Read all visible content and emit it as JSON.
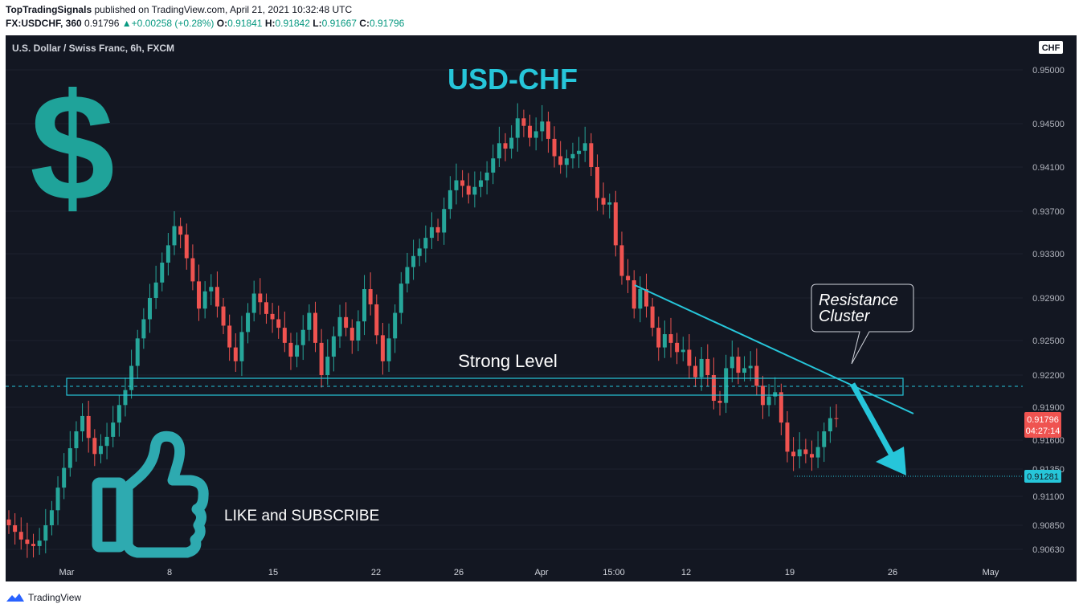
{
  "header": {
    "publisher": "TopTradingSignals",
    "published_text": "published on TradingView.com, April 21, 2021 10:32:48 UTC",
    "symbol_line": "FX:USDCHF, 360",
    "last": "0.91796",
    "change": "+0.00258 (+0.28%)",
    "o_label": "O:",
    "o": "0.91841",
    "h_label": "H:",
    "h": "0.91842",
    "l_label": "L:",
    "l": "0.91667",
    "c_label": "C:",
    "c": "0.91796"
  },
  "legend": "U.S. Dollar / Swiss Franc, 6h, FXCM",
  "currency_badge": "CHF",
  "footer": {
    "brand": "TradingView"
  },
  "colors": {
    "background": "#131722",
    "up": "#26a69a",
    "down": "#ef5350",
    "accent": "#26c6da",
    "text": "#d1d4dc",
    "dollar": "#1fa39a",
    "thumb": "#2eaab0"
  },
  "chart_data": {
    "type": "candlestick",
    "title": "USD-CHF",
    "y_ticks": [
      0.9063,
      0.9085,
      0.911,
      0.9135,
      0.916,
      0.919,
      0.922,
      0.925,
      0.929,
      0.933,
      0.937,
      0.941,
      0.945,
      0.95
    ],
    "y_tick_labels": [
      "0.90630",
      "0.90850",
      "0.91100",
      "0.91350",
      "0.91600",
      "0.91900",
      "0.92200",
      "0.92500",
      "0.92900",
      "0.93300",
      "0.93700",
      "0.94100",
      "0.94500",
      "0.95000"
    ],
    "x_tick_labels": [
      "Mar",
      "8",
      "15",
      "22",
      "26",
      "Apr",
      "15:00",
      "12",
      "19",
      "26",
      "May"
    ],
    "price_label_current": "0.91796",
    "countdown": "04:27:14",
    "price_label_target": "0.91281",
    "closes": [
      0.9085,
      0.9079,
      0.9072,
      0.9068,
      0.9066,
      0.9071,
      0.9085,
      0.9098,
      0.9118,
      0.9136,
      0.9153,
      0.9168,
      0.9182,
      0.9162,
      0.9148,
      0.9155,
      0.9163,
      0.9176,
      0.9192,
      0.9206,
      0.9228,
      0.9252,
      0.927,
      0.929,
      0.9304,
      0.9322,
      0.9338,
      0.9356,
      0.9348,
      0.9326,
      0.9305,
      0.928,
      0.9296,
      0.93,
      0.9282,
      0.9264,
      0.9244,
      0.9232,
      0.9258,
      0.9276,
      0.9294,
      0.9286,
      0.9275,
      0.927,
      0.9262,
      0.9248,
      0.9236,
      0.9246,
      0.926,
      0.9276,
      0.9248,
      0.922,
      0.9236,
      0.9254,
      0.9272,
      0.9262,
      0.925,
      0.9268,
      0.9298,
      0.9284,
      0.9255,
      0.9232,
      0.9252,
      0.9276,
      0.9303,
      0.9318,
      0.9328,
      0.9335,
      0.9345,
      0.9355,
      0.935,
      0.9372,
      0.9389,
      0.9398,
      0.9393,
      0.9385,
      0.9392,
      0.9398,
      0.9405,
      0.9418,
      0.9432,
      0.9427,
      0.9437,
      0.9455,
      0.9448,
      0.9437,
      0.9443,
      0.9452,
      0.9436,
      0.942,
      0.9412,
      0.9418,
      0.9422,
      0.9425,
      0.9432,
      0.941,
      0.9382,
      0.9376,
      0.9378,
      0.9338,
      0.931,
      0.9306,
      0.928,
      0.9298,
      0.9282,
      0.9262,
      0.9244,
      0.9256,
      0.9248,
      0.924,
      0.9242,
      0.9228,
      0.9218,
      0.9234,
      0.922,
      0.9196,
      0.9194,
      0.9226,
      0.9236,
      0.9222,
      0.9226,
      0.9228,
      0.921,
      0.9192,
      0.92,
      0.9204,
      0.9176,
      0.915,
      0.9146,
      0.9152,
      0.9148,
      0.9145,
      0.9154,
      0.9168,
      0.918,
      0.91796
    ]
  }
}
